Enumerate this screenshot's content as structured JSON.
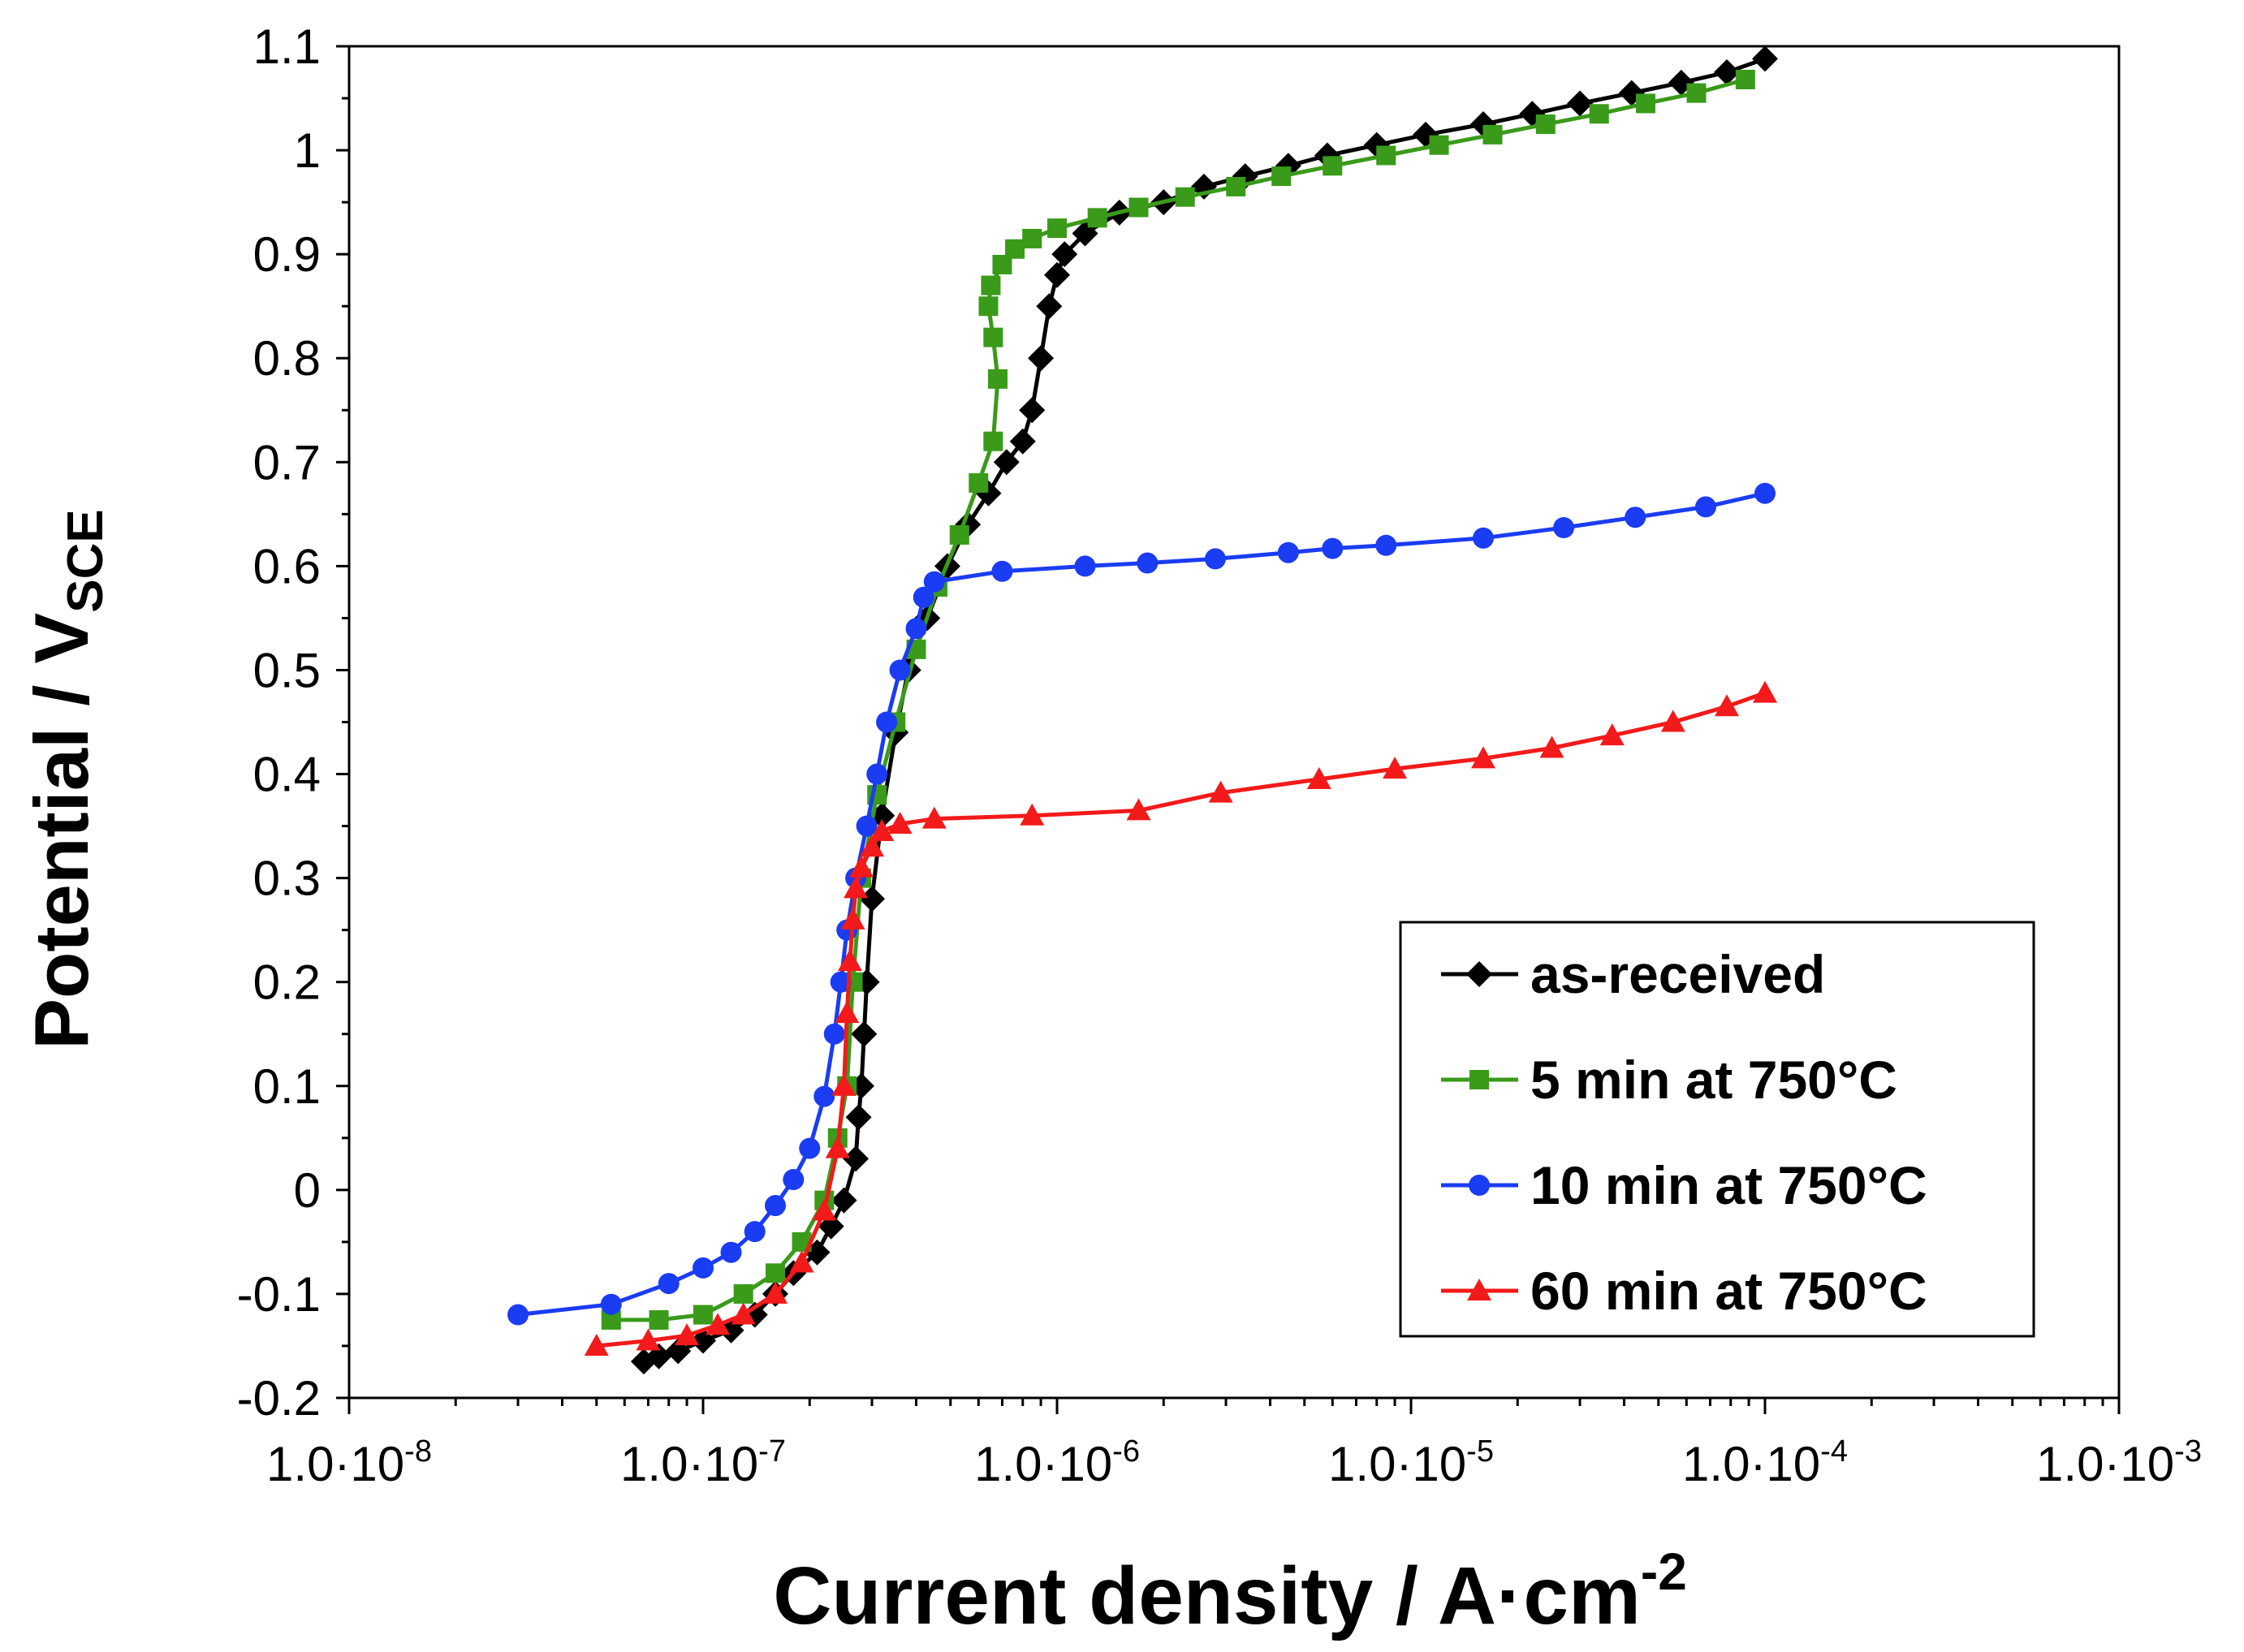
{
  "chart_data": {
    "type": "line",
    "xscale": "log",
    "xlim": [
      1e-08,
      0.001
    ],
    "ylim": [
      -0.2,
      1.1
    ],
    "xlabel": "Current density / A·cm",
    "xlabel_sup": "-2",
    "ylabel": "Potential / V",
    "ylabel_sub": "SCE",
    "grid": false,
    "legend_position": "bottom-right",
    "x_ticks": [
      {
        "value": 1e-08,
        "base": "1.0·10",
        "exp": "-8"
      },
      {
        "value": 1e-07,
        "base": "1.0·10",
        "exp": "-7"
      },
      {
        "value": 1e-06,
        "base": "1.0·10",
        "exp": "-6"
      },
      {
        "value": 1e-05,
        "base": "1.0·10",
        "exp": "-5"
      },
      {
        "value": 0.0001,
        "base": "1.0·10",
        "exp": "-4"
      },
      {
        "value": 0.001,
        "base": "1.0·10",
        "exp": "-3"
      }
    ],
    "y_ticks": [
      {
        "value": 1.1,
        "label": "1.1"
      },
      {
        "value": 1.0,
        "label": "1"
      },
      {
        "value": 0.9,
        "label": "0.9"
      },
      {
        "value": 0.8,
        "label": "0.8"
      },
      {
        "value": 0.7,
        "label": "0.7"
      },
      {
        "value": 0.6,
        "label": "0.6"
      },
      {
        "value": 0.5,
        "label": "0.5"
      },
      {
        "value": 0.4,
        "label": "0.4"
      },
      {
        "value": 0.3,
        "label": "0.3"
      },
      {
        "value": 0.2,
        "label": "0.2"
      },
      {
        "value": 0.1,
        "label": "0.1"
      },
      {
        "value": 0.0,
        "label": "0"
      },
      {
        "value": -0.1,
        "label": "-0.1"
      },
      {
        "value": -0.2,
        "label": "-0.2"
      }
    ],
    "series": [
      {
        "name": "as-received",
        "color": "#000000",
        "marker": "diamond",
        "x": [
          6.8e-08,
          7.5e-08,
          8.5e-08,
          1e-07,
          1.2e-07,
          1.4e-07,
          1.6e-07,
          1.8e-07,
          2.1e-07,
          2.3e-07,
          2.5e-07,
          2.7e-07,
          2.75e-07,
          2.8e-07,
          2.85e-07,
          2.9e-07,
          3e-07,
          3.2e-07,
          3.5e-07,
          3.8e-07,
          4.3e-07,
          4.9e-07,
          5.6e-07,
          6.4e-07,
          7.2e-07,
          8e-07,
          8.5e-07,
          9e-07,
          9.5e-07,
          1e-06,
          1.05e-06,
          1.2e-06,
          1.5e-06,
          2e-06,
          2.6e-06,
          3.4e-06,
          4.5e-06,
          5.8e-06,
          8e-06,
          1.1e-05,
          1.6e-05,
          2.2e-05,
          3e-05,
          4.2e-05,
          5.8e-05,
          7.8e-05,
          0.0001
        ],
        "y": [
          -0.165,
          -0.16,
          -0.155,
          -0.145,
          -0.135,
          -0.12,
          -0.1,
          -0.08,
          -0.06,
          -0.035,
          -0.01,
          0.03,
          0.07,
          0.1,
          0.15,
          0.2,
          0.28,
          0.36,
          0.44,
          0.5,
          0.55,
          0.6,
          0.64,
          0.67,
          0.7,
          0.72,
          0.75,
          0.8,
          0.85,
          0.88,
          0.9,
          0.92,
          0.94,
          0.95,
          0.965,
          0.975,
          0.985,
          0.995,
          1.005,
          1.015,
          1.025,
          1.035,
          1.045,
          1.055,
          1.065,
          1.075,
          1.088
        ]
      },
      {
        "name": "5 min at 750°C",
        "color": "#3a9a1a",
        "marker": "square",
        "x": [
          5.5e-08,
          7.5e-08,
          1e-07,
          1.3e-07,
          1.6e-07,
          1.9e-07,
          2.2e-07,
          2.4e-07,
          2.55e-07,
          2.65e-07,
          2.8e-07,
          3.1e-07,
          3.5e-07,
          4e-07,
          4.6e-07,
          5.3e-07,
          6e-07,
          6.6e-07,
          6.8e-07,
          6.6e-07,
          6.4e-07,
          6.5e-07,
          7e-07,
          7.6e-07,
          8.5e-07,
          1e-06,
          1.3e-06,
          1.7e-06,
          2.3e-06,
          3.2e-06,
          4.3e-06,
          6e-06,
          8.5e-06,
          1.2e-05,
          1.7e-05,
          2.4e-05,
          3.4e-05,
          4.6e-05,
          6.4e-05,
          8.8e-05
        ],
        "y": [
          -0.125,
          -0.125,
          -0.12,
          -0.1,
          -0.08,
          -0.05,
          -0.01,
          0.05,
          0.1,
          0.2,
          0.3,
          0.38,
          0.45,
          0.52,
          0.58,
          0.63,
          0.68,
          0.72,
          0.78,
          0.82,
          0.85,
          0.87,
          0.89,
          0.905,
          0.915,
          0.925,
          0.935,
          0.945,
          0.955,
          0.965,
          0.975,
          0.985,
          0.995,
          1.005,
          1.015,
          1.025,
          1.035,
          1.045,
          1.055,
          1.068
        ]
      },
      {
        "name": "10 min at 750°C",
        "color": "#1a3cf2",
        "marker": "circle",
        "x": [
          3e-08,
          5.5e-08,
          8e-08,
          1e-07,
          1.2e-07,
          1.4e-07,
          1.6e-07,
          1.8e-07,
          2e-07,
          2.2e-07,
          2.35e-07,
          2.45e-07,
          2.55e-07,
          2.7e-07,
          2.9e-07,
          3.1e-07,
          3.3e-07,
          3.6e-07,
          4e-07,
          4.2e-07,
          4.5e-07,
          7e-07,
          1.2e-06,
          1.8e-06,
          2.8e-06,
          4.5e-06,
          6e-06,
          8.5e-06,
          1.6e-05,
          2.7e-05,
          4.3e-05,
          6.8e-05,
          0.0001
        ],
        "y": [
          -0.12,
          -0.11,
          -0.09,
          -0.075,
          -0.06,
          -0.04,
          -0.015,
          0.01,
          0.04,
          0.09,
          0.15,
          0.2,
          0.25,
          0.3,
          0.35,
          0.4,
          0.45,
          0.5,
          0.54,
          0.57,
          0.585,
          0.595,
          0.6,
          0.603,
          0.607,
          0.613,
          0.617,
          0.62,
          0.627,
          0.637,
          0.647,
          0.657,
          0.67
        ]
      },
      {
        "name": "60 min at 750°C",
        "color": "#f21a1a",
        "marker": "triangle",
        "x": [
          5e-08,
          7e-08,
          9e-08,
          1.1e-07,
          1.3e-07,
          1.6e-07,
          1.9e-07,
          2.2e-07,
          2.4e-07,
          2.5e-07,
          2.55e-07,
          2.6e-07,
          2.65e-07,
          2.7e-07,
          2.8e-07,
          3e-07,
          3.2e-07,
          3.6e-07,
          4.5e-07,
          8.5e-07,
          1.7e-06,
          2.9e-06,
          5.5e-06,
          9e-06,
          1.6e-05,
          2.5e-05,
          3.7e-05,
          5.5e-05,
          7.8e-05,
          0.0001
        ],
        "y": [
          -0.15,
          -0.145,
          -0.14,
          -0.13,
          -0.12,
          -0.1,
          -0.07,
          -0.02,
          0.04,
          0.1,
          0.17,
          0.22,
          0.26,
          0.29,
          0.31,
          0.33,
          0.345,
          0.352,
          0.357,
          0.36,
          0.365,
          0.382,
          0.395,
          0.405,
          0.415,
          0.425,
          0.437,
          0.45,
          0.465,
          0.478
        ]
      }
    ]
  }
}
